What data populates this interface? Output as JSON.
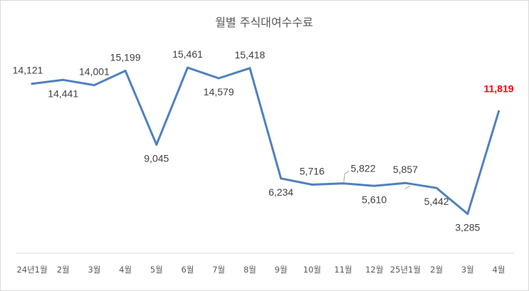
{
  "chart_data": {
    "type": "line",
    "title": "월별 주식대여수수료",
    "categories": [
      "24년1월",
      "2월",
      "3월",
      "4월",
      "5월",
      "6월",
      "7월",
      "8월",
      "9월",
      "10월",
      "11월",
      "12월",
      "25년1월",
      "2월",
      "3월",
      "4월"
    ],
    "values": [
      14121,
      14441,
      14001,
      15199,
      9045,
      15461,
      14579,
      15418,
      6234,
      5716,
      5822,
      5610,
      5857,
      5442,
      3285,
      11819
    ],
    "value_labels": [
      "14,121",
      "14,441",
      "14,001",
      "15,199",
      "9,045",
      "15,461",
      "14,579",
      "15,418",
      "6,234",
      "5,716",
      "5,822",
      "5,610",
      "5,857",
      "5,442",
      "3,285",
      "11,819"
    ],
    "label_placement": [
      "above",
      "below",
      "above",
      "above",
      "below",
      "above",
      "below",
      "above",
      "below",
      "above",
      "above",
      "below",
      "above",
      "below",
      "below",
      "above"
    ],
    "highlight_index": 15,
    "ylim": [
      0,
      18000
    ],
    "grid": false,
    "legend": "none",
    "colors": {
      "line": "#4f81bd",
      "highlight_label": "#ff0000",
      "text": "#404040",
      "axis": "#d9d9d9",
      "border": "#d9d9d9",
      "leader_line": "#a6a6a6"
    }
  }
}
